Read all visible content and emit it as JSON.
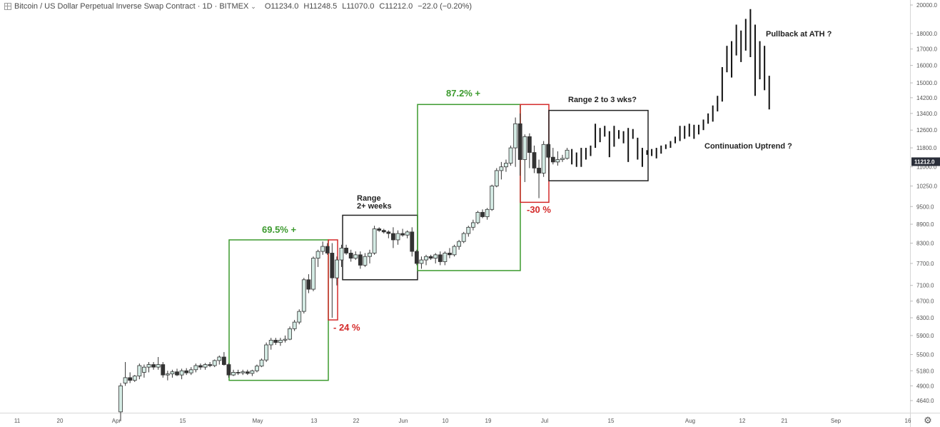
{
  "header": {
    "symbol_title": "Bitcoin / US Dollar Perpetual Inverse Swap Contract · 1D · BITMEX",
    "chevron": "⌄",
    "ohlc": {
      "open": "O11234.0",
      "high": "H11248.5",
      "low": "L11070.0",
      "close": "C11212.0",
      "change": "−22.0 (−0.20%)"
    }
  },
  "price_axis": {
    "labels": [
      "20000.0",
      "18000.0",
      "17000.0",
      "16000.0",
      "15000.0",
      "14200.0",
      "13400.0",
      "12600.0",
      "11800.0",
      "11000.0",
      "10250.0",
      "9500.0",
      "8900.0",
      "8300.0",
      "7700.0",
      "7100.0",
      "6700.0",
      "6300.0",
      "5900.0",
      "5500.0",
      "5180.0",
      "4900.0",
      "4640.0"
    ],
    "last_price": "11212.0",
    "last_price_color": "#2a2e39"
  },
  "time_axis": {
    "labels": [
      "11",
      "20",
      "Apr",
      "15",
      "May",
      "13",
      "22",
      "Jun",
      "10",
      "19",
      "Jul",
      "15",
      "Aug",
      "12",
      "21",
      "Sep",
      "16"
    ]
  },
  "chart_data": {
    "type": "candlestick",
    "title": "Bitcoin / US Dollar Perpetual Inverse Swap Contract · 1D · BITMEX",
    "y_scale": "log",
    "ylim": [
      4500,
      20500
    ],
    "up_color": "#d4ebe4",
    "down_color": "#333333",
    "last_price": 11212.0,
    "candles": [
      {
        "o": 4450,
        "h": 4950,
        "l": 4300,
        "c": 4900
      },
      {
        "o": 4950,
        "h": 5350,
        "l": 4900,
        "c": 5050
      },
      {
        "o": 5050,
        "h": 5150,
        "l": 4950,
        "c": 5000
      },
      {
        "o": 5000,
        "h": 5100,
        "l": 4970,
        "c": 5080
      },
      {
        "o": 5080,
        "h": 5320,
        "l": 5020,
        "c": 5280
      },
      {
        "o": 5150,
        "h": 5300,
        "l": 5050,
        "c": 5250
      },
      {
        "o": 5250,
        "h": 5350,
        "l": 5150,
        "c": 5300
      },
      {
        "o": 5300,
        "h": 5350,
        "l": 5200,
        "c": 5250
      },
      {
        "o": 5250,
        "h": 5450,
        "l": 5200,
        "c": 5300
      },
      {
        "o": 5300,
        "h": 5350,
        "l": 5050,
        "c": 5100
      },
      {
        "o": 5100,
        "h": 5180,
        "l": 5000,
        "c": 5120
      },
      {
        "o": 5120,
        "h": 5200,
        "l": 5050,
        "c": 5160
      },
      {
        "o": 5160,
        "h": 5220,
        "l": 5080,
        "c": 5100
      },
      {
        "o": 5100,
        "h": 5220,
        "l": 5020,
        "c": 5180
      },
      {
        "o": 5180,
        "h": 5230,
        "l": 5100,
        "c": 5140
      },
      {
        "o": 5140,
        "h": 5250,
        "l": 5100,
        "c": 5200
      },
      {
        "o": 5200,
        "h": 5320,
        "l": 5150,
        "c": 5280
      },
      {
        "o": 5280,
        "h": 5320,
        "l": 5200,
        "c": 5250
      },
      {
        "o": 5250,
        "h": 5330,
        "l": 5200,
        "c": 5300
      },
      {
        "o": 5300,
        "h": 5350,
        "l": 5250,
        "c": 5280
      },
      {
        "o": 5280,
        "h": 5400,
        "l": 5250,
        "c": 5380
      },
      {
        "o": 5380,
        "h": 5480,
        "l": 5300,
        "c": 5450
      },
      {
        "o": 5450,
        "h": 5550,
        "l": 5280,
        "c": 5300
      },
      {
        "o": 5300,
        "h": 5330,
        "l": 5050,
        "c": 5100
      },
      {
        "o": 5100,
        "h": 5200,
        "l": 5080,
        "c": 5150
      },
      {
        "o": 5150,
        "h": 5200,
        "l": 5100,
        "c": 5140
      },
      {
        "o": 5140,
        "h": 5200,
        "l": 5100,
        "c": 5160
      },
      {
        "o": 5160,
        "h": 5200,
        "l": 5100,
        "c": 5130
      },
      {
        "o": 5130,
        "h": 5200,
        "l": 5080,
        "c": 5180
      },
      {
        "o": 5180,
        "h": 5300,
        "l": 5150,
        "c": 5270
      },
      {
        "o": 5270,
        "h": 5420,
        "l": 5250,
        "c": 5390
      },
      {
        "o": 5390,
        "h": 5750,
        "l": 5350,
        "c": 5700
      },
      {
        "o": 5700,
        "h": 5850,
        "l": 5600,
        "c": 5800
      },
      {
        "o": 5800,
        "h": 5850,
        "l": 5700,
        "c": 5750
      },
      {
        "o": 5750,
        "h": 5850,
        "l": 5680,
        "c": 5800
      },
      {
        "o": 5800,
        "h": 5900,
        "l": 5750,
        "c": 5820
      },
      {
        "o": 5820,
        "h": 6100,
        "l": 5800,
        "c": 6050
      },
      {
        "o": 6050,
        "h": 6250,
        "l": 6000,
        "c": 6200
      },
      {
        "o": 6200,
        "h": 6500,
        "l": 6150,
        "c": 6450
      },
      {
        "o": 6450,
        "h": 7300,
        "l": 6400,
        "c": 7250
      },
      {
        "o": 7250,
        "h": 7400,
        "l": 6900,
        "c": 7000
      },
      {
        "o": 7000,
        "h": 7900,
        "l": 6950,
        "c": 7850
      },
      {
        "o": 7850,
        "h": 8100,
        "l": 7600,
        "c": 8050
      },
      {
        "o": 8050,
        "h": 8350,
        "l": 7950,
        "c": 8200
      },
      {
        "o": 8200,
        "h": 8300,
        "l": 7950,
        "c": 8000
      },
      {
        "o": 8000,
        "h": 8300,
        "l": 6300,
        "c": 7300
      },
      {
        "o": 7300,
        "h": 7900,
        "l": 7100,
        "c": 7800
      },
      {
        "o": 7800,
        "h": 8250,
        "l": 7600,
        "c": 8150
      },
      {
        "o": 8150,
        "h": 8250,
        "l": 7950,
        "c": 8000
      },
      {
        "o": 8000,
        "h": 8100,
        "l": 7750,
        "c": 7850
      },
      {
        "o": 7850,
        "h": 8050,
        "l": 7800,
        "c": 7950
      },
      {
        "o": 7950,
        "h": 8050,
        "l": 7550,
        "c": 7650
      },
      {
        "o": 7650,
        "h": 8000,
        "l": 7600,
        "c": 7900
      },
      {
        "o": 7900,
        "h": 8100,
        "l": 7700,
        "c": 8000
      },
      {
        "o": 8000,
        "h": 8850,
        "l": 7950,
        "c": 8750
      },
      {
        "o": 8750,
        "h": 8800,
        "l": 8650,
        "c": 8700
      },
      {
        "o": 8700,
        "h": 8750,
        "l": 8600,
        "c": 8650
      },
      {
        "o": 8650,
        "h": 8700,
        "l": 8450,
        "c": 8600
      },
      {
        "o": 8600,
        "h": 8800,
        "l": 8150,
        "c": 8400
      },
      {
        "o": 8400,
        "h": 8700,
        "l": 8250,
        "c": 8600
      },
      {
        "o": 8600,
        "h": 8750,
        "l": 8500,
        "c": 8550
      },
      {
        "o": 8550,
        "h": 8700,
        "l": 8450,
        "c": 8650
      },
      {
        "o": 8650,
        "h": 8800,
        "l": 7900,
        "c": 8050
      },
      {
        "o": 8050,
        "h": 8100,
        "l": 7650,
        "c": 7700
      },
      {
        "o": 7700,
        "h": 7900,
        "l": 7550,
        "c": 7800
      },
      {
        "o": 7800,
        "h": 7950,
        "l": 7650,
        "c": 7900
      },
      {
        "o": 7900,
        "h": 7950,
        "l": 7800,
        "c": 7850
      },
      {
        "o": 7850,
        "h": 8000,
        "l": 7700,
        "c": 7950
      },
      {
        "o": 7950,
        "h": 8050,
        "l": 7650,
        "c": 7750
      },
      {
        "o": 7750,
        "h": 8050,
        "l": 7650,
        "c": 8000
      },
      {
        "o": 8000,
        "h": 8150,
        "l": 7850,
        "c": 7950
      },
      {
        "o": 7950,
        "h": 8250,
        "l": 7900,
        "c": 8200
      },
      {
        "o": 8200,
        "h": 8400,
        "l": 8100,
        "c": 8350
      },
      {
        "o": 8350,
        "h": 8650,
        "l": 8300,
        "c": 8600
      },
      {
        "o": 8600,
        "h": 8850,
        "l": 8500,
        "c": 8800
      },
      {
        "o": 8800,
        "h": 9050,
        "l": 8700,
        "c": 8950
      },
      {
        "o": 8950,
        "h": 9350,
        "l": 8900,
        "c": 9300
      },
      {
        "o": 9300,
        "h": 9400,
        "l": 9100,
        "c": 9150
      },
      {
        "o": 9150,
        "h": 9450,
        "l": 9050,
        "c": 9400
      },
      {
        "o": 9400,
        "h": 10300,
        "l": 9350,
        "c": 10250
      },
      {
        "o": 10250,
        "h": 10950,
        "l": 10200,
        "c": 10850
      },
      {
        "o": 10850,
        "h": 11200,
        "l": 10500,
        "c": 11000
      },
      {
        "o": 11000,
        "h": 11300,
        "l": 10800,
        "c": 11150
      },
      {
        "o": 11150,
        "h": 11900,
        "l": 11050,
        "c": 11800
      },
      {
        "o": 11800,
        "h": 13200,
        "l": 11000,
        "c": 12900
      },
      {
        "o": 12900,
        "h": 13400,
        "l": 10650,
        "c": 11300
      },
      {
        "o": 11300,
        "h": 12400,
        "l": 10400,
        "c": 12300
      },
      {
        "o": 12300,
        "h": 12450,
        "l": 10950,
        "c": 11600
      },
      {
        "o": 11600,
        "h": 11900,
        "l": 10750,
        "c": 10950
      },
      {
        "o": 10950,
        "h": 11300,
        "l": 9800,
        "c": 10750
      },
      {
        "o": 10750,
        "h": 12100,
        "l": 10600,
        "c": 11950
      },
      {
        "o": 11950,
        "h": 12000,
        "l": 11350,
        "c": 11400
      },
      {
        "o": 11400,
        "h": 11800,
        "l": 11100,
        "c": 11200
      },
      {
        "o": 11200,
        "h": 11650,
        "l": 11050,
        "c": 11300
      },
      {
        "o": 11300,
        "h": 11500,
        "l": 11200,
        "c": 11350
      },
      {
        "o": 11350,
        "h": 11800,
        "l": 11300,
        "c": 11700
      }
    ],
    "ohlc_bars": [
      {
        "o": 11700,
        "h": 11750,
        "l": 11100,
        "c": 11300
      },
      {
        "o": 11300,
        "h": 11600,
        "l": 11000,
        "c": 11400
      },
      {
        "o": 11400,
        "h": 11800,
        "l": 11000,
        "c": 11100
      },
      {
        "o": 11100,
        "h": 11800,
        "l": 11300,
        "c": 11750
      },
      {
        "o": 11750,
        "h": 11900,
        "l": 11450,
        "c": 11600
      },
      {
        "o": 11600,
        "h": 12900,
        "l": 11800,
        "c": 12600
      },
      {
        "o": 12600,
        "h": 12700,
        "l": 12050,
        "c": 12500
      },
      {
        "o": 12500,
        "h": 12800,
        "l": 12300,
        "c": 12400
      },
      {
        "o": 12400,
        "h": 12550,
        "l": 11400,
        "c": 11900
      },
      {
        "o": 11900,
        "h": 12800,
        "l": 11850,
        "c": 12500
      },
      {
        "o": 12500,
        "h": 12600,
        "l": 12200,
        "c": 12300
      },
      {
        "o": 12300,
        "h": 12550,
        "l": 12000,
        "c": 12350
      },
      {
        "o": 12350,
        "h": 12700,
        "l": 11200,
        "c": 12600
      },
      {
        "o": 12600,
        "h": 12650,
        "l": 12200,
        "c": 12200
      },
      {
        "o": 12200,
        "h": 12250,
        "l": 11300,
        "c": 11400
      },
      {
        "o": 11400,
        "h": 11800,
        "l": 11000,
        "c": 11700
      },
      {
        "o": 11700,
        "h": 11700,
        "l": 11500,
        "c": 11600
      },
      {
        "o": 11600,
        "h": 11750,
        "l": 11450,
        "c": 11700
      },
      {
        "o": 11700,
        "h": 11800,
        "l": 11350,
        "c": 11500
      },
      {
        "o": 11500,
        "h": 11900,
        "l": 11550,
        "c": 11800
      },
      {
        "o": 11800,
        "h": 11950,
        "l": 11750,
        "c": 11900
      },
      {
        "o": 11900,
        "h": 12100,
        "l": 11800,
        "c": 12050
      },
      {
        "o": 12050,
        "h": 12300,
        "l": 12000,
        "c": 12200
      },
      {
        "o": 12200,
        "h": 12800,
        "l": 12100,
        "c": 12700
      },
      {
        "o": 12700,
        "h": 12800,
        "l": 12200,
        "c": 12400
      },
      {
        "o": 12400,
        "h": 12900,
        "l": 12300,
        "c": 12800
      },
      {
        "o": 12800,
        "h": 12850,
        "l": 12200,
        "c": 12500
      },
      {
        "o": 12500,
        "h": 12850,
        "l": 12400,
        "c": 12700
      },
      {
        "o": 12700,
        "h": 13100,
        "l": 12600,
        "c": 13000
      },
      {
        "o": 13000,
        "h": 13400,
        "l": 12900,
        "c": 13300
      },
      {
        "o": 13300,
        "h": 13800,
        "l": 13000,
        "c": 13700
      },
      {
        "o": 13700,
        "h": 14300,
        "l": 13500,
        "c": 14200
      },
      {
        "o": 14200,
        "h": 15900,
        "l": 14000,
        "c": 15800
      },
      {
        "o": 15800,
        "h": 17200,
        "l": 15600,
        "c": 17000
      },
      {
        "o": 17000,
        "h": 17500,
        "l": 15300,
        "c": 16800
      },
      {
        "o": 16800,
        "h": 18600,
        "l": 16600,
        "c": 18400
      },
      {
        "o": 18400,
        "h": 18200,
        "l": 16200,
        "c": 17500
      },
      {
        "o": 17500,
        "h": 19000,
        "l": 16900,
        "c": 18300
      },
      {
        "o": 18300,
        "h": 19700,
        "l": 16500,
        "c": 17300
      },
      {
        "o": 17300,
        "h": 18600,
        "l": 14300,
        "c": 17700
      },
      {
        "o": 17700,
        "h": 17500,
        "l": 15200,
        "c": 17000
      },
      {
        "o": 17000,
        "h": 17200,
        "l": 14600,
        "c": 16500
      },
      {
        "o": 16500,
        "h": 15400,
        "l": 13600,
        "c": 14500
      }
    ],
    "annotations": [
      {
        "text": "69.5% +",
        "color": "#3c9a2e"
      },
      {
        "text": "- 24 %",
        "color": "#d42a2a"
      },
      {
        "text": "Range",
        "color": "#222222"
      },
      {
        "text": "2+ weeks",
        "color": "#222222"
      },
      {
        "text": "87.2% +",
        "color": "#3c9a2e"
      },
      {
        "text": "-30 %",
        "color": "#d42a2a"
      },
      {
        "text": "Range 2 to 3 wks?",
        "color": "#222222"
      },
      {
        "text": "Continuation Uptrend ?",
        "color": "#222222"
      },
      {
        "text": "Pullback at ATH ?",
        "color": "#222222"
      }
    ],
    "boxes": [
      {
        "label": "uptrend-box-1",
        "color": "#3c9a2e",
        "from_price": 5000,
        "to_price": 8400
      },
      {
        "label": "drop-box-1",
        "color": "#d42a2a",
        "from_price": 6250,
        "to_price": 8400
      },
      {
        "label": "range-box-1",
        "color": "#222222",
        "from_price": 7250,
        "to_price": 9200
      },
      {
        "label": "uptrend-box-2",
        "color": "#3c9a2e",
        "from_price": 7500,
        "to_price": 13850
      },
      {
        "label": "drop-box-2",
        "color": "#d42a2a",
        "from_price": 9650,
        "to_price": 13850
      },
      {
        "label": "range-box-2",
        "color": "#222222",
        "from_price": 10450,
        "to_price": 13550
      }
    ]
  }
}
